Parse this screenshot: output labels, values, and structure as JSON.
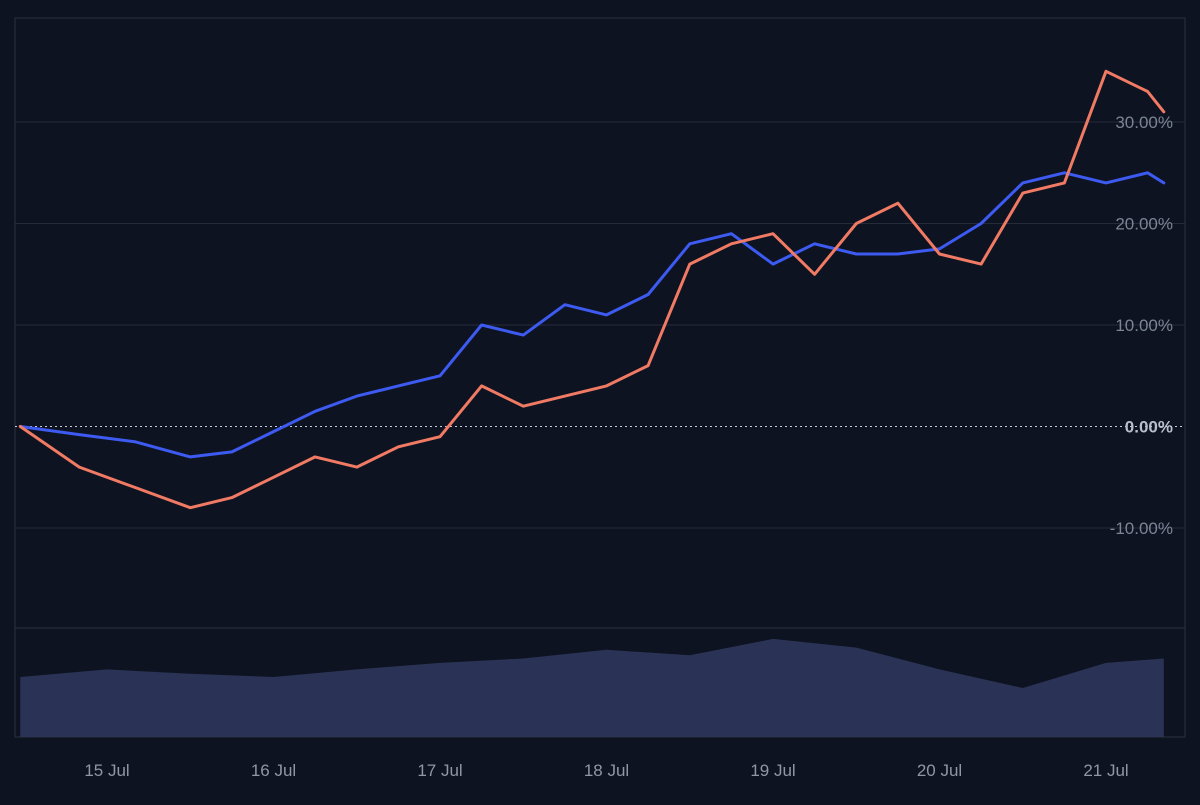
{
  "chart_data": {
    "type": "line",
    "title": "",
    "xlabel": "",
    "ylabel": "",
    "ylim": [
      -20,
      40
    ],
    "grid": true,
    "baseline": 0,
    "y_ticks": [
      {
        "value": 30,
        "label": "30.00%"
      },
      {
        "value": 20,
        "label": "20.00%"
      },
      {
        "value": 10,
        "label": "10.00%"
      },
      {
        "value": 0,
        "label": "0.00%"
      },
      {
        "value": -10,
        "label": "-10.00%"
      }
    ],
    "x_ticks": [
      {
        "value": "2024-07-15",
        "label": "15 Jul"
      },
      {
        "value": "2024-07-16",
        "label": "16 Jul"
      },
      {
        "value": "2024-07-17",
        "label": "17 Jul"
      },
      {
        "value": "2024-07-18",
        "label": "18 Jul"
      },
      {
        "value": "2024-07-19",
        "label": "19 Jul"
      },
      {
        "value": "2024-07-20",
        "label": "20 Jul"
      },
      {
        "value": "2024-07-21",
        "label": "21 Jul"
      }
    ],
    "x": [
      "2024-07-14T11:30",
      "2024-07-14T20:00",
      "2024-07-15T04:00",
      "2024-07-15T12:00",
      "2024-07-15T18:00",
      "2024-07-16T00:00",
      "2024-07-16T06:00",
      "2024-07-16T12:00",
      "2024-07-16T18:00",
      "2024-07-17T00:00",
      "2024-07-17T06:00",
      "2024-07-17T12:00",
      "2024-07-17T18:00",
      "2024-07-18T00:00",
      "2024-07-18T06:00",
      "2024-07-18T12:00",
      "2024-07-18T18:00",
      "2024-07-19T00:00",
      "2024-07-19T06:00",
      "2024-07-19T12:00",
      "2024-07-19T18:00",
      "2024-07-20T00:00",
      "2024-07-20T06:00",
      "2024-07-20T12:00",
      "2024-07-20T18:00",
      "2024-07-21T00:00",
      "2024-07-21T06:00",
      "2024-07-21T08:20"
    ],
    "series": [
      {
        "color": "#3d5af1",
        "values": [
          0,
          -0.8,
          -1.5,
          -3,
          -2.5,
          -0.5,
          1.5,
          3,
          4,
          5,
          10,
          9,
          12,
          11,
          13,
          18,
          19,
          16,
          18,
          17,
          17,
          17.5,
          20,
          24,
          25,
          24,
          25,
          24
        ]
      },
      {
        "color": "#f07a63",
        "values": [
          0,
          -4,
          -6,
          -8,
          -7,
          -5,
          -3,
          -4,
          -2,
          -1,
          4,
          2,
          3,
          4,
          6,
          16,
          18,
          19,
          15,
          20,
          22,
          17,
          16,
          23,
          24,
          35,
          33,
          31
        ]
      }
    ],
    "volume": {
      "color": "#2a3355",
      "x": [
        "2024-07-14T11:30",
        "2024-07-15T00:00",
        "2024-07-15T12:00",
        "2024-07-16T00:00",
        "2024-07-16T12:00",
        "2024-07-17T00:00",
        "2024-07-17T12:00",
        "2024-07-18T00:00",
        "2024-07-18T12:00",
        "2024-07-19T00:00",
        "2024-07-19T12:00",
        "2024-07-20T00:00",
        "2024-07-20T12:00",
        "2024-07-21T00:00",
        "2024-07-21T08:20"
      ],
      "values": [
        0.55,
        0.62,
        0.58,
        0.55,
        0.62,
        0.68,
        0.72,
        0.8,
        0.75,
        0.9,
        0.82,
        0.62,
        0.45,
        0.68,
        0.72
      ]
    }
  }
}
